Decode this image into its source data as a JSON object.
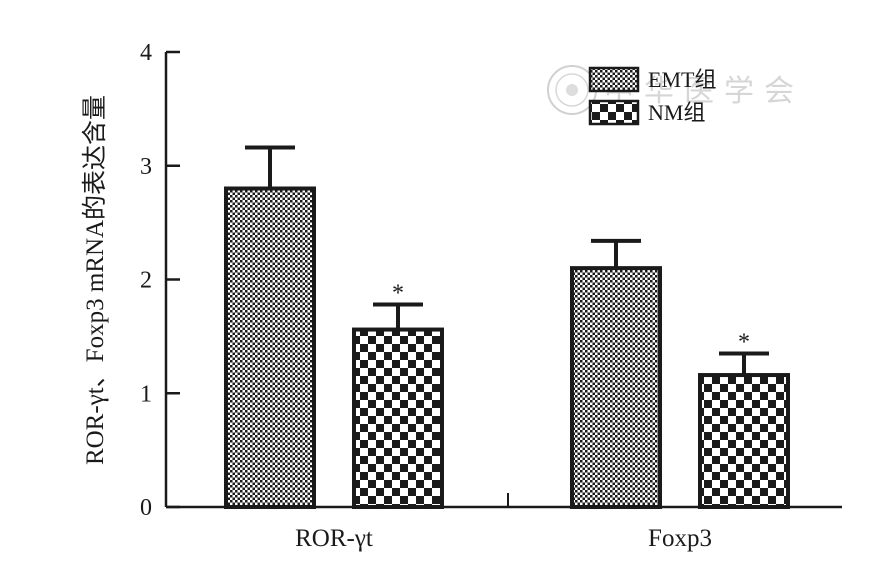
{
  "chart_data": {
    "type": "bar",
    "categories": [
      "ROR-γt",
      "Foxp3"
    ],
    "series": [
      {
        "name": "EMT组",
        "values": [
          2.8,
          2.1
        ],
        "errors": [
          0.36,
          0.24
        ],
        "pattern": "fine-dots"
      },
      {
        "name": "NM组",
        "values": [
          1.56,
          1.16
        ],
        "errors": [
          0.22,
          0.19
        ],
        "pattern": "checker"
      }
    ],
    "significance": [
      {
        "series": 1,
        "category": 0,
        "label": "*"
      },
      {
        "series": 1,
        "category": 1,
        "label": "*"
      }
    ],
    "ylabel": "ROR-γt、Foxp3 mRNA的表达含量",
    "xlabel": "",
    "ylim": [
      0,
      4
    ],
    "yticks": [
      0,
      1,
      2,
      3,
      4
    ],
    "grid": false,
    "legend_position": "top-right",
    "colors": {
      "ink": "#1a1a1a",
      "background": "#ffffff"
    }
  },
  "watermark": {
    "icon": "seal-icon",
    "text": "中华医学会"
  }
}
